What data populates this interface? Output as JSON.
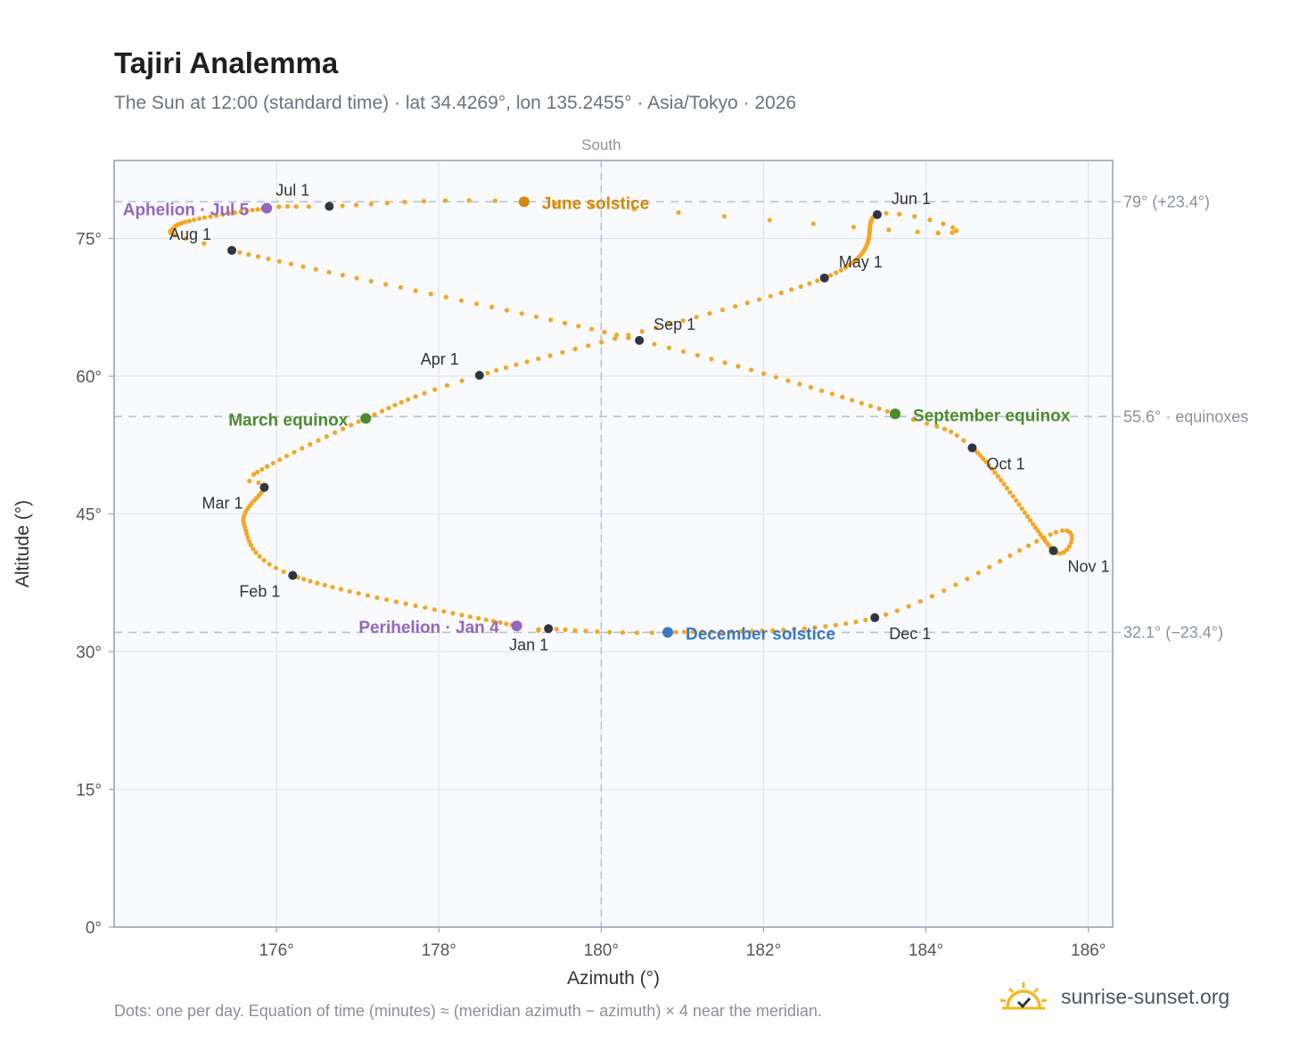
{
  "title": "Tajiri Analemma",
  "subtitle": "The Sun at 12:00 (standard time) · lat 34.4269°, lon 135.2455° · Asia/Tokyo · 2026",
  "footnote": "Dots: one per day. Equation of time (minutes) ≈ (meridian azimuth − azimuth) × 4 near the meridian.",
  "brand": {
    "name": "sunrise-sunset.org",
    "logo_icon": "sun-logo-icon",
    "logo_color": "#f2b824"
  },
  "chart_data": {
    "type": "scatter",
    "title": "Tajiri Analemma",
    "xlabel": "Azimuth (°)",
    "ylabel": "Altitude (°)",
    "xlim": [
      174,
      186.3
    ],
    "ylim": [
      0,
      83.5
    ],
    "xticks": [
      176,
      178,
      180,
      182,
      184,
      186
    ],
    "xtick_labels": [
      "176°",
      "178°",
      "180°",
      "182°",
      "184°",
      "186°"
    ],
    "yticks": [
      0,
      15,
      30,
      45,
      60,
      75
    ],
    "ytick_labels": [
      "0°",
      "15°",
      "30°",
      "45°",
      "60°",
      "75°"
    ],
    "grid": true,
    "meridian": {
      "azimuth": 180,
      "label": "South"
    },
    "reference_lines": [
      {
        "altitude": 79.0,
        "label": "79° (+23.4°)"
      },
      {
        "altitude": 55.6,
        "label": "55.6° · equinoxes"
      },
      {
        "altitude": 32.1,
        "label": "32.1° (−23.4°)"
      }
    ],
    "series": [
      {
        "name": "",
        "color": "#f5a623",
        "points_description_order": "month_start azimuth, altitude (one dot per day interpolated between)",
        "anchors": [
          {
            "date": "Jan 1",
            "x": 179.35,
            "y": 32.5
          },
          {
            "date": "Feb 1",
            "x": 176.2,
            "y": 38.3
          },
          {
            "date": "Mar 1",
            "x": 175.85,
            "y": 47.9
          },
          {
            "date": "Apr 1",
            "x": 178.5,
            "y": 60.1
          },
          {
            "date": "May 1",
            "x": 182.75,
            "y": 70.7
          },
          {
            "date": "Jun 1",
            "x": 183.4,
            "y": 77.6
          },
          {
            "date": "Jul 1",
            "x": 176.65,
            "y": 78.5
          },
          {
            "date": "Aug 1",
            "x": 175.45,
            "y": 73.7
          },
          {
            "date": "Sep 1",
            "x": 180.47,
            "y": 63.9
          },
          {
            "date": "Oct 1",
            "x": 184.57,
            "y": 52.2
          },
          {
            "date": "Nov 1",
            "x": 185.57,
            "y": 41.0
          },
          {
            "date": "Dec 1",
            "x": 183.37,
            "y": 33.7
          }
        ]
      }
    ],
    "month_markers": [
      {
        "label": "Jan 1",
        "x": 179.35,
        "y": 32.5
      },
      {
        "label": "Feb 1",
        "x": 176.2,
        "y": 38.3
      },
      {
        "label": "Mar 1",
        "x": 175.85,
        "y": 47.9
      },
      {
        "label": "Apr 1",
        "x": 178.5,
        "y": 60.1
      },
      {
        "label": "May 1",
        "x": 182.75,
        "y": 70.7
      },
      {
        "label": "Jun 1",
        "x": 183.4,
        "y": 77.6
      },
      {
        "label": "Jul 1",
        "x": 176.65,
        "y": 78.5
      },
      {
        "label": "Aug 1",
        "x": 175.45,
        "y": 73.7
      },
      {
        "label": "Sep 1",
        "x": 180.47,
        "y": 63.9
      },
      {
        "label": "Oct 1",
        "x": 184.57,
        "y": 52.2
      },
      {
        "label": "Nov 1",
        "x": 185.57,
        "y": 41.0
      },
      {
        "label": "Dec 1",
        "x": 183.37,
        "y": 33.7
      }
    ],
    "events": [
      {
        "label": "June solstice",
        "x": 179.05,
        "y": 79.0,
        "color": "#d48806"
      },
      {
        "label": "Aphelion · Jul 5",
        "x": 175.88,
        "y": 78.3,
        "color": "#9467bd"
      },
      {
        "label": "March equinox",
        "x": 177.1,
        "y": 55.4,
        "color": "#4c8c2b"
      },
      {
        "label": "September equinox",
        "x": 183.62,
        "y": 55.9,
        "color": "#4c8c2b"
      },
      {
        "label": "Perihelion · Jan 4",
        "x": 178.96,
        "y": 32.8,
        "color": "#9467bd"
      },
      {
        "label": "December solstice",
        "x": 180.82,
        "y": 32.1,
        "color": "#3a78c2"
      }
    ]
  }
}
